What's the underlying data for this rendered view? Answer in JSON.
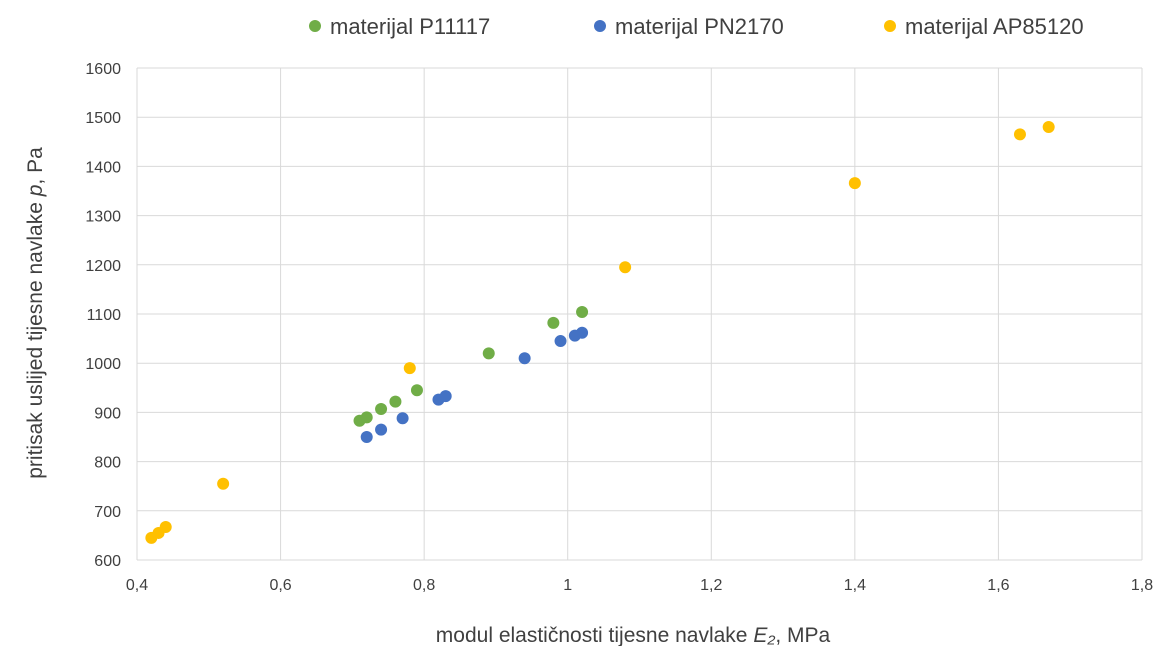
{
  "chart_data": {
    "type": "scatter",
    "title": "",
    "xlabel_parts": [
      "modul elastičnosti tijesne navlake ",
      "E₂",
      ", MPa"
    ],
    "ylabel_parts": [
      "pritisak uslijed tijesne navlake ",
      "p",
      ", Pa"
    ],
    "xlim": [
      0.4,
      1.8
    ],
    "ylim": [
      600,
      1600
    ],
    "x_ticks": [
      0.4,
      0.6,
      0.8,
      1.0,
      1.2,
      1.4,
      1.6,
      1.8
    ],
    "x_tick_labels": [
      "0,4",
      "0,6",
      "0,8",
      "1",
      "1,2",
      "1,4",
      "1,6",
      "1,8"
    ],
    "y_ticks": [
      600,
      700,
      800,
      900,
      1000,
      1100,
      1200,
      1300,
      1400,
      1500,
      1600
    ],
    "y_tick_labels": [
      "600",
      "700",
      "800",
      "900",
      "1000",
      "1100",
      "1200",
      "1300",
      "1400",
      "1500",
      "1600"
    ],
    "grid": true,
    "legend_position": "top",
    "series": [
      {
        "name": "materijal P11117",
        "color": "#70ad47",
        "points": [
          [
            0.71,
            883
          ],
          [
            0.72,
            890
          ],
          [
            0.74,
            907
          ],
          [
            0.76,
            922
          ],
          [
            0.79,
            945
          ],
          [
            0.89,
            1020
          ],
          [
            0.98,
            1082
          ],
          [
            1.02,
            1104
          ]
        ]
      },
      {
        "name": "materijal PN2170",
        "color": "#4472c4",
        "points": [
          [
            0.72,
            850
          ],
          [
            0.74,
            865
          ],
          [
            0.77,
            888
          ],
          [
            0.82,
            926
          ],
          [
            0.83,
            933
          ],
          [
            0.94,
            1010
          ],
          [
            0.99,
            1045
          ],
          [
            1.01,
            1056
          ],
          [
            1.02,
            1062
          ]
        ]
      },
      {
        "name": "materijal AP85120",
        "color": "#ffc000",
        "points": [
          [
            0.42,
            645
          ],
          [
            0.43,
            655
          ],
          [
            0.44,
            667
          ],
          [
            0.52,
            755
          ],
          [
            0.78,
            990
          ],
          [
            1.08,
            1195
          ],
          [
            1.4,
            1366
          ],
          [
            1.63,
            1465
          ],
          [
            1.67,
            1480
          ]
        ]
      }
    ]
  }
}
